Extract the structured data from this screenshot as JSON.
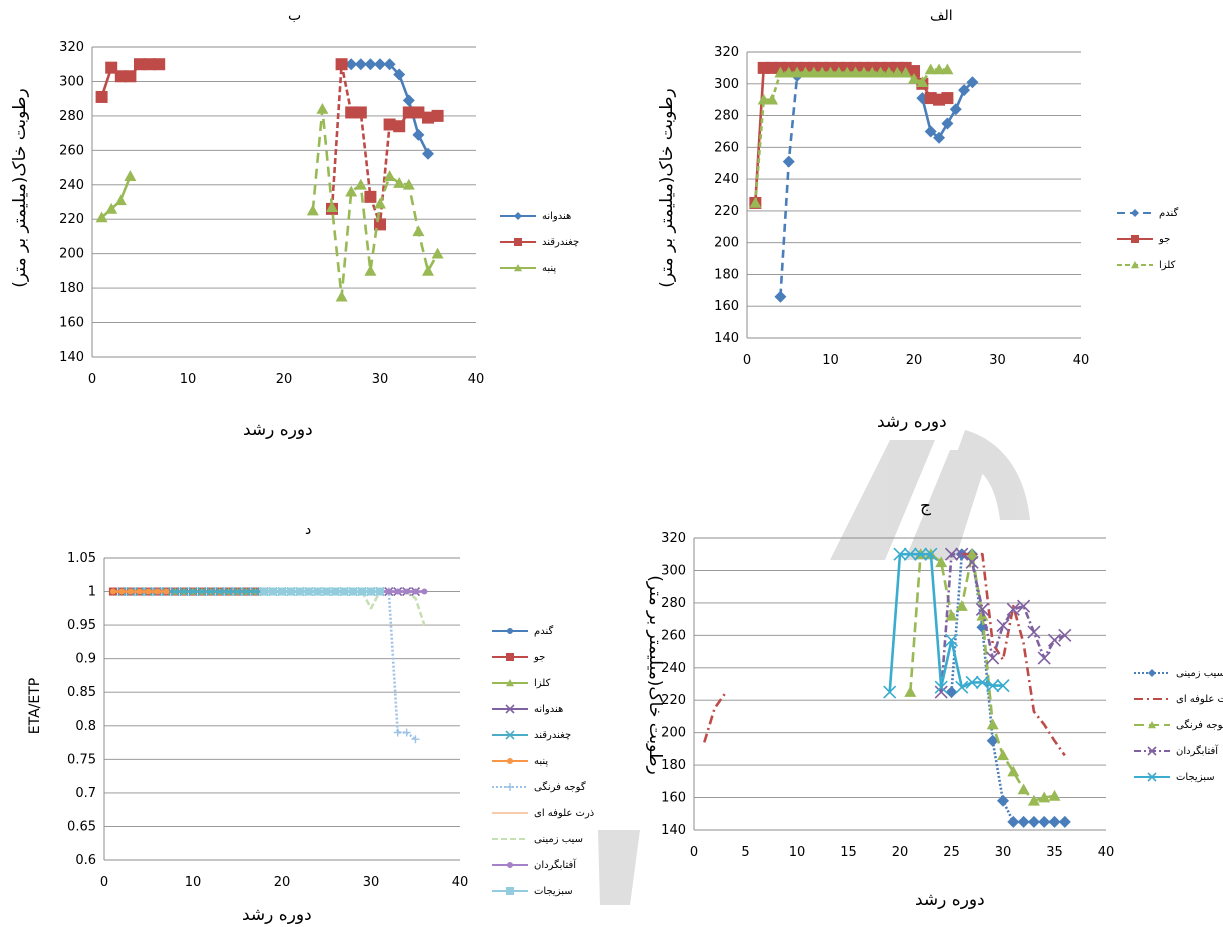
{
  "chart_data": [
    {
      "id": "alef",
      "type": "line",
      "title": "الف",
      "xlabel": "دوره رشد",
      "ylabel": "رطوبت خاک(میلیمتر بر متر)",
      "xlim": [
        0,
        40
      ],
      "ylim": [
        140,
        320
      ],
      "xticks": [
        0,
        10,
        20,
        30,
        40
      ],
      "yticks": [
        140,
        160,
        180,
        200,
        220,
        240,
        260,
        280,
        300,
        320
      ],
      "grid": "horizontal",
      "legend": "right",
      "series": [
        {
          "name": "گندم",
          "color": "#4a7ebb",
          "dash": "8,5",
          "marker": "diamond",
          "x": [
            4,
            5,
            6
          ],
          "y": [
            166,
            251,
            305
          ]
        },
        {
          "name": "گندم",
          "color": "#4a7ebb",
          "dash": "",
          "marker": "diamond",
          "x": [
            21,
            22,
            23,
            24,
            25,
            26,
            27
          ],
          "y": [
            291,
            270,
            266,
            275,
            284,
            296,
            301
          ]
        },
        {
          "name": "جو",
          "color": "#be4b48",
          "dash": "",
          "marker": "square",
          "x": [
            1,
            2,
            3,
            4,
            5,
            6,
            7,
            8,
            9,
            10,
            11,
            12,
            13,
            14,
            15,
            16,
            17,
            18,
            19,
            20,
            21,
            22,
            23,
            24
          ],
          "y": [
            225,
            310,
            310,
            310,
            310,
            310,
            310,
            310,
            310,
            310,
            310,
            310,
            310,
            310,
            310,
            310,
            310,
            310,
            310,
            308,
            300,
            291,
            290,
            291
          ]
        },
        {
          "name": "کلزا",
          "color": "#98b954",
          "dash": "5,3",
          "marker": "triangle",
          "x": [
            1,
            2,
            3,
            4,
            5,
            6,
            7,
            8,
            9,
            10,
            11,
            12,
            13,
            14,
            15,
            16,
            17,
            18,
            19,
            20,
            21,
            22,
            23,
            24
          ],
          "y": [
            225,
            290,
            290,
            307,
            307,
            307,
            307,
            307,
            307,
            307,
            307,
            307,
            307,
            307,
            307,
            307,
            307,
            307,
            307,
            303,
            301,
            309,
            309,
            309
          ]
        }
      ]
    },
    {
      "id": "be",
      "type": "line",
      "title": "ب",
      "xlabel": "دوره رشد",
      "ylabel": "رطوبت خاک(میلیمتر بر متر)",
      "xlim": [
        0,
        40
      ],
      "ylim": [
        140,
        320
      ],
      "xticks": [
        0,
        10,
        20,
        30,
        40
      ],
      "yticks": [
        140,
        160,
        180,
        200,
        220,
        240,
        260,
        280,
        300,
        320
      ],
      "grid": "horizontal",
      "legend": "right",
      "series": [
        {
          "name": "هندوانه",
          "color": "#4a7ebb",
          "dash": "",
          "marker": "diamond",
          "x": [
            27,
            28,
            29,
            30,
            31,
            32,
            33,
            34,
            35
          ],
          "y": [
            310,
            310,
            310,
            310,
            310,
            304,
            289,
            269,
            258
          ]
        },
        {
          "name": "چغندرقند",
          "color": "#be4b48",
          "dash": "",
          "marker": "square",
          "x": [
            1,
            2,
            3,
            4,
            5,
            6,
            7
          ],
          "y": [
            291,
            308,
            303,
            303,
            310,
            310,
            310
          ]
        },
        {
          "name": "چغندرقند",
          "color": "#be4b48",
          "dash": "6,3",
          "marker": "square",
          "x": [
            25,
            26,
            27,
            28,
            29,
            30,
            31,
            32,
            33,
            34,
            35,
            36
          ],
          "y": [
            226,
            310,
            282,
            282,
            233,
            217,
            275,
            274,
            282,
            282,
            279,
            280
          ]
        },
        {
          "name": "پنبه",
          "color": "#98b954",
          "dash": "",
          "marker": "triangle",
          "x": [
            1,
            2,
            3,
            4
          ],
          "y": [
            221,
            226,
            231,
            245
          ]
        },
        {
          "name": "پنبه",
          "color": "#98b954",
          "dash": "10,6",
          "marker": "triangle",
          "x": [
            23,
            24,
            25,
            26,
            27,
            28,
            29,
            30,
            31,
            32,
            33,
            34,
            35,
            36
          ],
          "y": [
            225,
            284,
            227,
            175,
            236,
            240,
            190,
            229,
            245,
            241,
            240,
            213,
            190,
            200
          ]
        }
      ]
    },
    {
      "id": "jim",
      "type": "line",
      "title": "ج",
      "xlabel": "دوره رشد",
      "ylabel": "رطوبت خاک(میلیمتر بر متر)",
      "xlim": [
        0,
        40
      ],
      "ylim": [
        140,
        320
      ],
      "xticks": [
        0,
        5,
        10,
        15,
        20,
        25,
        30,
        35,
        40
      ],
      "yticks": [
        140,
        160,
        180,
        200,
        220,
        240,
        260,
        280,
        300,
        320
      ],
      "grid": "horizontal",
      "legend": "right",
      "series": [
        {
          "name": "سیب زمینی",
          "color": "#4a7ebb",
          "dash": "2,2",
          "marker": "diamond",
          "x": [
            25,
            26,
            27,
            28,
            29,
            30,
            31,
            32,
            33,
            34,
            35,
            36
          ],
          "y": [
            225,
            310,
            310,
            265,
            195,
            158,
            145,
            145,
            145,
            145,
            145,
            145
          ]
        },
        {
          "name": "ذرت علوفه ای",
          "color": "#be4b48",
          "dash": "9,4,2,4",
          "marker": "none",
          "x": [
            1,
            2,
            3
          ],
          "y": [
            194,
            215,
            224
          ]
        },
        {
          "name": "ذرت علوفه ای",
          "color": "#be4b48",
          "dash": "9,4,2,4",
          "marker": "none",
          "x": [
            26,
            27,
            28,
            29,
            30,
            31,
            32,
            33,
            34,
            35,
            36
          ],
          "y": [
            310,
            310,
            310,
            255,
            245,
            278,
            255,
            213,
            205,
            195,
            186
          ]
        },
        {
          "name": "گوجه فرنگی",
          "color": "#98b954",
          "dash": "10,5",
          "marker": "triangle",
          "x": [
            21,
            22,
            23,
            24,
            25,
            26,
            27,
            28,
            29,
            30,
            31,
            32,
            33,
            34,
            35
          ],
          "y": [
            225,
            310,
            310,
            305,
            272,
            278,
            310,
            272,
            205,
            186,
            176,
            165,
            158,
            160,
            161
          ]
        },
        {
          "name": "آفتابگردان",
          "color": "#7f60a0",
          "dash": "7,3,2,3",
          "marker": "x",
          "x": [
            24,
            25,
            26,
            27,
            28,
            29,
            30,
            31,
            32,
            33,
            34,
            35,
            36
          ],
          "y": [
            225,
            310,
            310,
            305,
            276,
            246,
            266,
            276,
            278,
            262,
            246,
            257,
            260
          ]
        },
        {
          "name": "سبزیجات",
          "color": "#3aaccf",
          "dash": "",
          "marker": "x",
          "x": [
            19,
            20,
            21,
            22,
            23,
            24,
            25,
            26,
            27,
            28,
            29,
            30
          ],
          "y": [
            225,
            310,
            310,
            310,
            310,
            228,
            257,
            228,
            231,
            231,
            229,
            229
          ]
        }
      ]
    },
    {
      "id": "dal",
      "type": "line",
      "title": "د",
      "xlabel": "دوره رشد",
      "ylabel": "ETA/ETP",
      "xlim": [
        0,
        40
      ],
      "ylim": [
        0.6,
        1.05
      ],
      "xticks": [
        0,
        10,
        20,
        30,
        40
      ],
      "yticks": [
        0.6,
        0.65,
        0.7,
        0.75,
        0.8,
        0.85,
        0.9,
        0.95,
        1,
        1.05
      ],
      "grid": "horizontal",
      "legend": "right",
      "series": [
        {
          "name": "گندم",
          "color": "#4a7ebb",
          "dash": "",
          "marker": "circle",
          "x": [
            1,
            27
          ],
          "y": [
            1,
            1
          ],
          "dense": true
        },
        {
          "name": "جو",
          "color": "#be4b48",
          "dash": "",
          "marker": "square",
          "x": [
            1,
            18
          ],
          "y": [
            1,
            1
          ],
          "dense": true
        },
        {
          "name": "کلزا",
          "color": "#98b954",
          "dash": "",
          "marker": "triangle",
          "x": [
            8,
            18
          ],
          "y": [
            1,
            1
          ],
          "dense": true
        },
        {
          "name": "هندوانه",
          "color": "#7f60a0",
          "dash": "",
          "marker": "x",
          "x": [
            31,
            35
          ],
          "y": [
            1,
            1
          ],
          "dense": true
        },
        {
          "name": "چغندرقند",
          "color": "#4bacc6",
          "dash": "",
          "marker": "x",
          "x": [
            2,
            30
          ],
          "y": [
            1,
            1
          ],
          "dense": true
        },
        {
          "name": "پنبه",
          "color": "#f79646",
          "dash": "",
          "marker": "circle",
          "x": [
            1,
            7
          ],
          "y": [
            1,
            1
          ],
          "dense": true
        },
        {
          "name": "گوجه فرنگی",
          "color": "#9dc3e6",
          "dash": "2,2",
          "marker": "plus",
          "x": [
            30,
            31,
            32,
            33,
            34,
            35
          ],
          "y": [
            1,
            1,
            1,
            0.79,
            0.79,
            0.78
          ]
        },
        {
          "name": "ذرت علوفه ای",
          "color": "#f8cbad",
          "dash": "",
          "marker": "none",
          "x": [
            31,
            36
          ],
          "y": [
            1,
            1
          ]
        },
        {
          "name": "سیب زمینی",
          "color": "#c5e0b4",
          "dash": "6,3",
          "marker": "none",
          "x": [
            28,
            29,
            30,
            31,
            32,
            33,
            34,
            35,
            36
          ],
          "y": [
            1,
            1,
            0.975,
            1,
            1,
            1,
            1,
            0.99,
            0.95
          ]
        },
        {
          "name": "آفتابگردان",
          "color": "#a581c7",
          "dash": "",
          "marker": "circle",
          "x": [
            31,
            36
          ],
          "y": [
            1,
            1
          ],
          "dense": true
        },
        {
          "name": "سبزیجات",
          "color": "#93cddd",
          "dash": "",
          "marker": "square",
          "x": [
            18,
            31
          ],
          "y": [
            1,
            1
          ],
          "dense": true
        }
      ]
    }
  ]
}
